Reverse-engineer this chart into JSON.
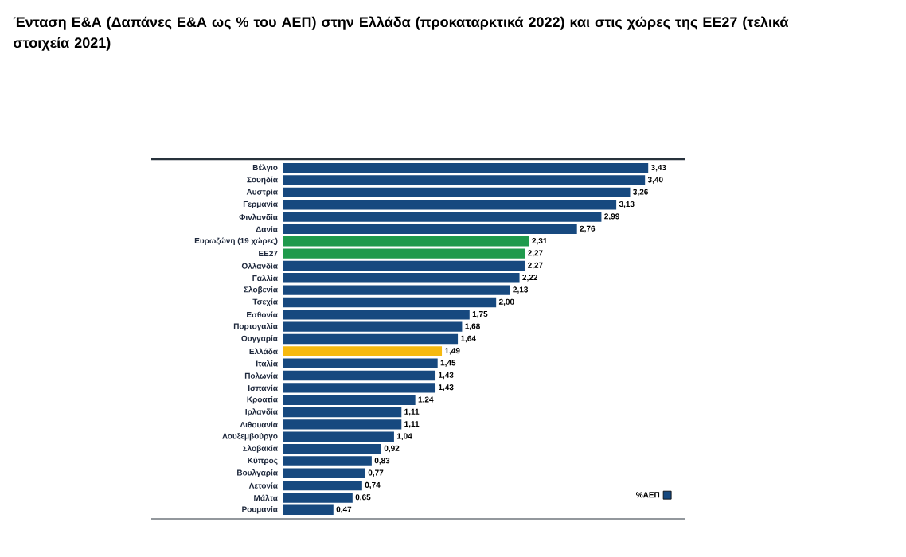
{
  "chart_data": {
    "type": "bar",
    "orientation": "horizontal",
    "title": "Ένταση Ε&Α (Δαπάνες Ε&Α ως % του ΑΕΠ) στην Ελλάδα (προκαταρκτικά 2022) και στις χώρες της ΕΕ27 (τελικά στοιχεία 2021)",
    "categories": [
      "Βέλγιο",
      "Σουηδία",
      "Αυστρία",
      "Γερμανία",
      "Φινλανδία",
      "Δανία",
      "Ευρωζώνη (19 χώρες)",
      "ΕΕ27",
      "Ολλανδία",
      "Γαλλία",
      "Σλοβενία",
      "Τσεχία",
      "Εσθονία",
      "Πορτογαλία",
      "Ουγγαρία",
      "Ελλάδα",
      "Ιταλία",
      "Πολωνία",
      "Ισπανία",
      "Κροατία",
      "Ιρλανδία",
      "Λιθουανία",
      "Λουξεμβούργο",
      "Σλοβακία",
      "Κύπρος",
      "Βουλγαρία",
      "Λετονία",
      "Μάλτα",
      "Ρουμανία"
    ],
    "series": [
      {
        "name": "%ΑΕΠ",
        "color": "#17497f",
        "colors": [
          "#17497f",
          "#17497f",
          "#17497f",
          "#17497f",
          "#17497f",
          "#17497f",
          "#1f9a4c",
          "#1f9a4c",
          "#17497f",
          "#17497f",
          "#17497f",
          "#17497f",
          "#17497f",
          "#17497f",
          "#17497f",
          "#f6b90f",
          "#17497f",
          "#17497f",
          "#17497f",
          "#17497f",
          "#17497f",
          "#17497f",
          "#17497f",
          "#17497f",
          "#17497f",
          "#17497f",
          "#17497f",
          "#17497f",
          "#17497f"
        ],
        "values": [
          3.43,
          3.4,
          3.26,
          3.13,
          2.99,
          2.76,
          2.31,
          2.27,
          2.27,
          2.22,
          2.13,
          2.0,
          1.75,
          1.68,
          1.64,
          1.49,
          1.45,
          1.43,
          1.43,
          1.24,
          1.11,
          1.11,
          1.04,
          0.92,
          0.83,
          0.77,
          0.74,
          0.65,
          0.47
        ],
        "value_labels": [
          "3,43",
          "3,40",
          "3,26",
          "3,13",
          "2,99",
          "2,76",
          "2,31",
          "2,27",
          "2,27",
          "2,22",
          "2,13",
          "2,00",
          "1,75",
          "1,68",
          "1,64",
          "1,49",
          "1,45",
          "1,43",
          "1,43",
          "1,24",
          "1,11",
          "1,11",
          "1,04",
          "0,92",
          "0,83",
          "0,77",
          "0,74",
          "0,65",
          "0,47"
        ]
      }
    ],
    "legend": "bottom right"
  }
}
